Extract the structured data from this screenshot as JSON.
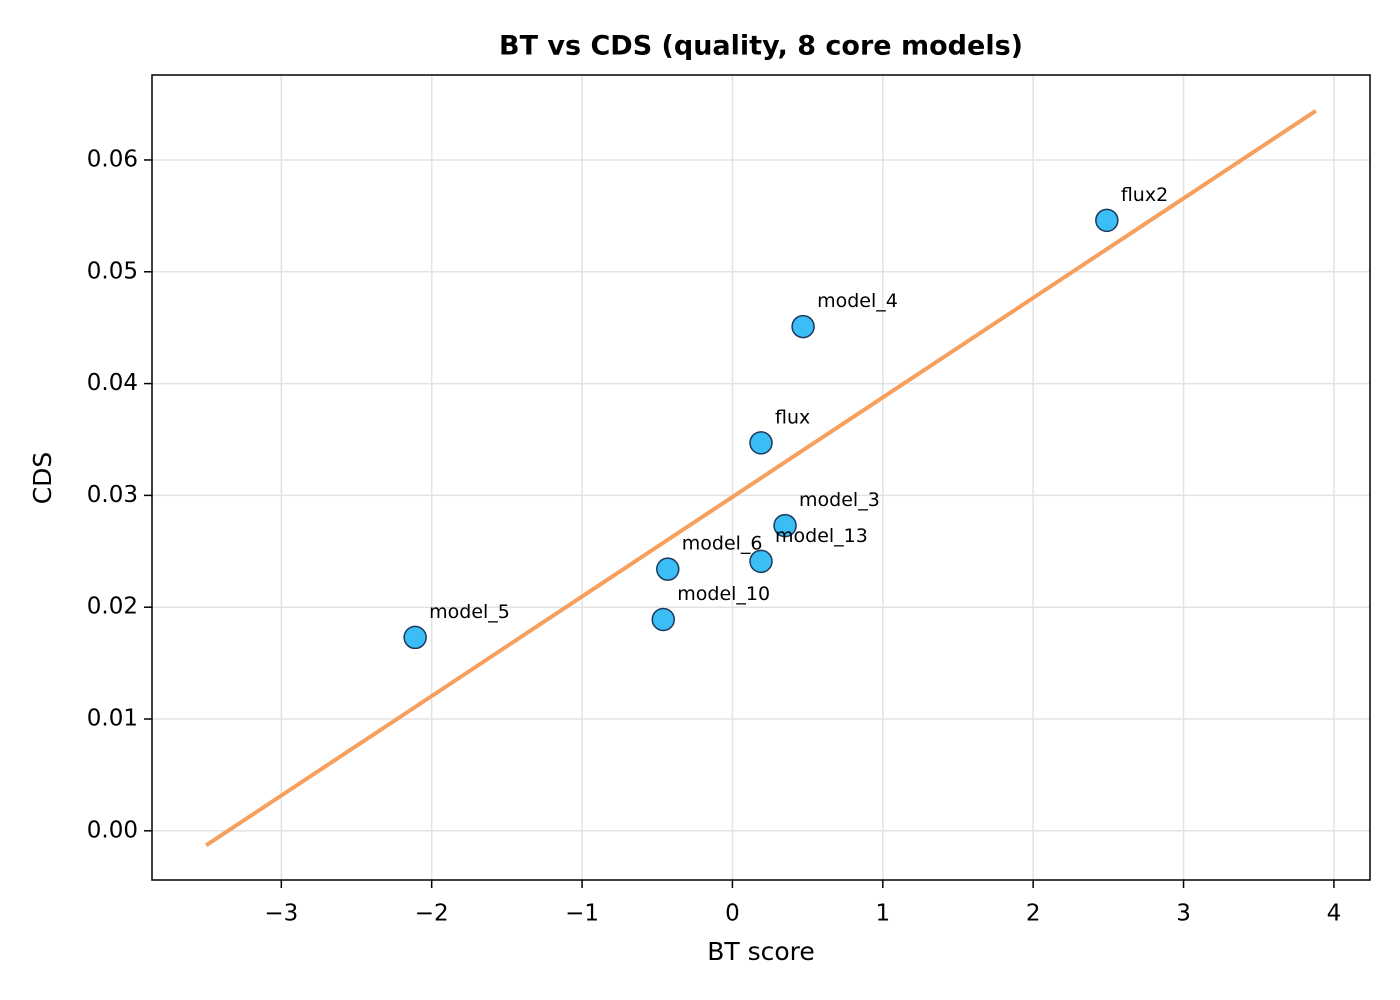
{
  "chart_data": {
    "type": "scatter",
    "title": "BT vs CDS (quality, 8 core models)",
    "x_label": "BT score",
    "y_label": "CDS",
    "labels": [
      "flux2",
      "model_4",
      "flux",
      "model_3",
      "model_13",
      "model_6",
      "model_10",
      "model_5"
    ],
    "x": [
      2.49,
      0.47,
      0.19,
      0.35,
      0.19,
      -0.43,
      -0.46,
      -2.11
    ],
    "y": [
      0.0546,
      0.0451,
      0.0347,
      0.0273,
      0.0241,
      0.0234,
      0.0189,
      0.0173
    ],
    "color": "#3bbdf6",
    "edge_color": "#1b3a5c",
    "fit_line": {
      "x": [
        -3.5,
        3.88
      ],
      "y": [
        -0.0013,
        0.0644
      ],
      "color": "#f7a05e"
    },
    "xlim": [
      -3.86,
      4.24
    ],
    "ylim": [
      -0.0044,
      0.0676
    ],
    "xticks": [
      {
        "value": -3,
        "label": "−3"
      },
      {
        "value": -2,
        "label": "−2"
      },
      {
        "value": -1,
        "label": "−1"
      },
      0,
      1,
      2,
      3,
      4
    ],
    "yticks": [
      {
        "value": 0,
        "label": "0.00"
      },
      0.01,
      0.02,
      0.03,
      0.04,
      0.05,
      0.06
    ],
    "grid": true
  }
}
